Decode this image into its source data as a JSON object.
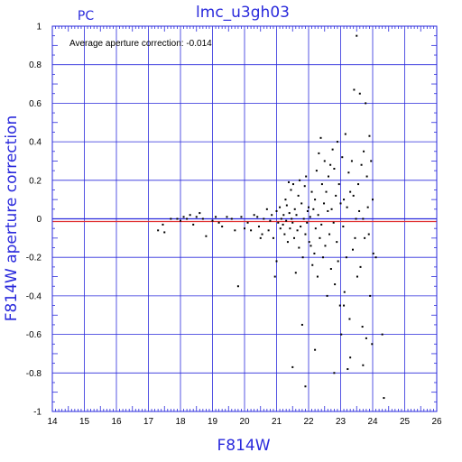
{
  "chart_data": {
    "type": "scatter",
    "title": "lmc_u3gh03",
    "panel_label": "PC",
    "xlabel": "F814W",
    "ylabel": "F814W aperture correction",
    "annotation": "Average aperture correction: -0.014",
    "xlim": [
      14,
      26
    ],
    "ylim": [
      -1,
      1
    ],
    "x_ticks": [
      "14",
      "15",
      "16",
      "17",
      "18",
      "19",
      "20",
      "21",
      "22",
      "23",
      "24",
      "25",
      "26"
    ],
    "y_ticks": [
      "-1",
      "-0.8",
      "-0.6",
      "-0.4",
      "-0.2",
      "0",
      "0.2",
      "0.4",
      "0.6",
      "0.8",
      "1"
    ],
    "grid": true,
    "reference_lines": [
      {
        "y": -0.014,
        "color": "#e03030"
      },
      {
        "y": 0,
        "color": "#2a2adc"
      }
    ],
    "colors": {
      "axes": "#2a2adc",
      "grid": "#2a2adc",
      "points": "#000000",
      "average_line": "#e03030"
    },
    "series": [
      {
        "points": [
          [
            17.3,
            -0.06
          ],
          [
            17.45,
            -0.03
          ],
          [
            17.5,
            -0.07
          ],
          [
            17.7,
            0.0
          ],
          [
            17.9,
            0.0
          ],
          [
            18.0,
            -0.01
          ],
          [
            18.1,
            0.01
          ],
          [
            18.2,
            0.0
          ],
          [
            18.3,
            0.02
          ],
          [
            18.4,
            -0.03
          ],
          [
            18.5,
            0.01
          ],
          [
            18.6,
            0.03
          ],
          [
            18.7,
            0.0
          ],
          [
            18.8,
            -0.09
          ],
          [
            19.0,
            -0.01
          ],
          [
            19.1,
            0.01
          ],
          [
            19.2,
            -0.02
          ],
          [
            19.3,
            -0.04
          ],
          [
            19.45,
            0.01
          ],
          [
            19.6,
            0.0
          ],
          [
            19.7,
            -0.06
          ],
          [
            19.8,
            -0.35
          ],
          [
            19.9,
            0.01
          ],
          [
            20.0,
            -0.05
          ],
          [
            20.1,
            -0.02
          ],
          [
            20.2,
            -0.06
          ],
          [
            20.3,
            0.02
          ],
          [
            20.4,
            0.01
          ],
          [
            20.45,
            -0.04
          ],
          [
            20.55,
            -0.08
          ],
          [
            20.6,
            0.0
          ],
          [
            20.7,
            0.05
          ],
          [
            20.75,
            -0.06
          ],
          [
            20.8,
            -0.01
          ],
          [
            20.85,
            0.02
          ],
          [
            20.9,
            -0.1
          ],
          [
            20.95,
            -0.3
          ],
          [
            21.0,
            0.04
          ],
          [
            21.05,
            -0.02
          ],
          [
            21.1,
            0.06
          ],
          [
            21.12,
            -0.05
          ],
          [
            21.15,
            0.0
          ],
          [
            21.2,
            -0.03
          ],
          [
            21.22,
            0.02
          ],
          [
            21.25,
            -0.08
          ],
          [
            21.28,
            0.1
          ],
          [
            21.3,
            -0.01
          ],
          [
            21.32,
            0.07
          ],
          [
            21.35,
            -0.12
          ],
          [
            21.38,
            0.19
          ],
          [
            21.4,
            0.03
          ],
          [
            21.42,
            -0.05
          ],
          [
            21.45,
            0.15
          ],
          [
            21.47,
            0.0
          ],
          [
            21.5,
            -0.02
          ],
          [
            21.52,
            0.18
          ],
          [
            21.55,
            -0.1
          ],
          [
            21.57,
            0.05
          ],
          [
            21.6,
            -0.28
          ],
          [
            21.62,
            0.02
          ],
          [
            21.65,
            -0.06
          ],
          [
            21.68,
            0.12
          ],
          [
            21.7,
            -0.15
          ],
          [
            21.72,
            0.2
          ],
          [
            21.75,
            -0.04
          ],
          [
            21.78,
            0.08
          ],
          [
            21.8,
            -0.55
          ],
          [
            21.82,
            -0.2
          ],
          [
            21.85,
            0.0
          ],
          [
            21.88,
            0.17
          ],
          [
            21.9,
            -0.08
          ],
          [
            21.92,
            0.22
          ],
          [
            21.95,
            -0.02
          ],
          [
            21.97,
            0.04
          ],
          [
            22.0,
            0.06
          ],
          [
            22.02,
            -0.12
          ],
          [
            22.05,
            0.01
          ],
          [
            22.07,
            -0.14
          ],
          [
            22.1,
            0.14
          ],
          [
            22.12,
            -0.24
          ],
          [
            22.15,
            0.05
          ],
          [
            22.18,
            -0.18
          ],
          [
            22.2,
            0.1
          ],
          [
            22.22,
            -0.05
          ],
          [
            22.25,
            0.25
          ],
          [
            22.28,
            -0.3
          ],
          [
            22.3,
            0.02
          ],
          [
            22.32,
            0.34
          ],
          [
            22.35,
            -0.1
          ],
          [
            22.38,
            0.42
          ],
          [
            22.4,
            -0.03
          ],
          [
            22.42,
            0.18
          ],
          [
            22.45,
            -0.2
          ],
          [
            22.48,
            0.08
          ],
          [
            22.5,
            0.3
          ],
          [
            22.52,
            -0.14
          ],
          [
            22.55,
            0.14
          ],
          [
            22.58,
            -0.4
          ],
          [
            22.6,
            0.04
          ],
          [
            22.62,
            0.22
          ],
          [
            22.65,
            -0.08
          ],
          [
            22.68,
            0.28
          ],
          [
            22.7,
            -0.26
          ],
          [
            22.72,
            0.05
          ],
          [
            22.75,
            0.36
          ],
          [
            22.78,
            -0.02
          ],
          [
            22.8,
            0.26
          ],
          [
            22.82,
            -0.34
          ],
          [
            22.85,
            0.12
          ],
          [
            22.88,
            -0.12
          ],
          [
            22.9,
            0.4
          ],
          [
            22.92,
            -0.22
          ],
          [
            22.95,
            0.18
          ],
          [
            22.98,
            -0.45
          ],
          [
            23.0,
            0.08
          ],
          [
            23.02,
            -0.6
          ],
          [
            23.05,
            0.32
          ],
          [
            23.08,
            -0.04
          ],
          [
            23.1,
            0.1
          ],
          [
            23.12,
            -0.38
          ],
          [
            23.15,
            0.44
          ],
          [
            23.18,
            -0.2
          ],
          [
            23.2,
            0.06
          ],
          [
            23.22,
            -0.78
          ],
          [
            23.25,
            0.24
          ],
          [
            23.28,
            -0.52
          ],
          [
            23.3,
            0.14
          ],
          [
            23.35,
            0.3
          ],
          [
            23.38,
            -0.16
          ],
          [
            23.4,
            0.12
          ],
          [
            23.42,
            0.67
          ],
          [
            23.45,
            -0.1
          ],
          [
            23.48,
            0.0
          ],
          [
            23.5,
            0.95
          ],
          [
            23.52,
            -0.3
          ],
          [
            23.55,
            0.18
          ],
          [
            23.58,
            0.04
          ],
          [
            23.6,
            0.65
          ],
          [
            23.62,
            -0.25
          ],
          [
            23.65,
            0.28
          ],
          [
            23.68,
            -0.56
          ],
          [
            23.7,
            0.0
          ],
          [
            23.72,
            0.35
          ],
          [
            23.75,
            -0.1
          ],
          [
            23.78,
            0.6
          ],
          [
            23.8,
            -0.62
          ],
          [
            23.82,
            0.22
          ],
          [
            23.85,
            0.06
          ],
          [
            23.88,
            -0.08
          ],
          [
            23.9,
            0.43
          ],
          [
            23.92,
            -0.4
          ],
          [
            23.95,
            0.3
          ],
          [
            23.98,
            -0.65
          ],
          [
            24.0,
            0.1
          ],
          [
            24.02,
            -0.18
          ],
          [
            24.1,
            -0.2
          ],
          [
            24.3,
            -0.6
          ],
          [
            24.35,
            -0.93
          ],
          [
            21.9,
            -0.87
          ],
          [
            21.5,
            -0.77
          ],
          [
            22.2,
            -0.68
          ],
          [
            23.1,
            -0.45
          ],
          [
            23.7,
            -0.76
          ],
          [
            22.8,
            -0.8
          ],
          [
            23.3,
            -0.72
          ],
          [
            21.0,
            -0.22
          ],
          [
            20.5,
            -0.1
          ]
        ]
      }
    ]
  }
}
